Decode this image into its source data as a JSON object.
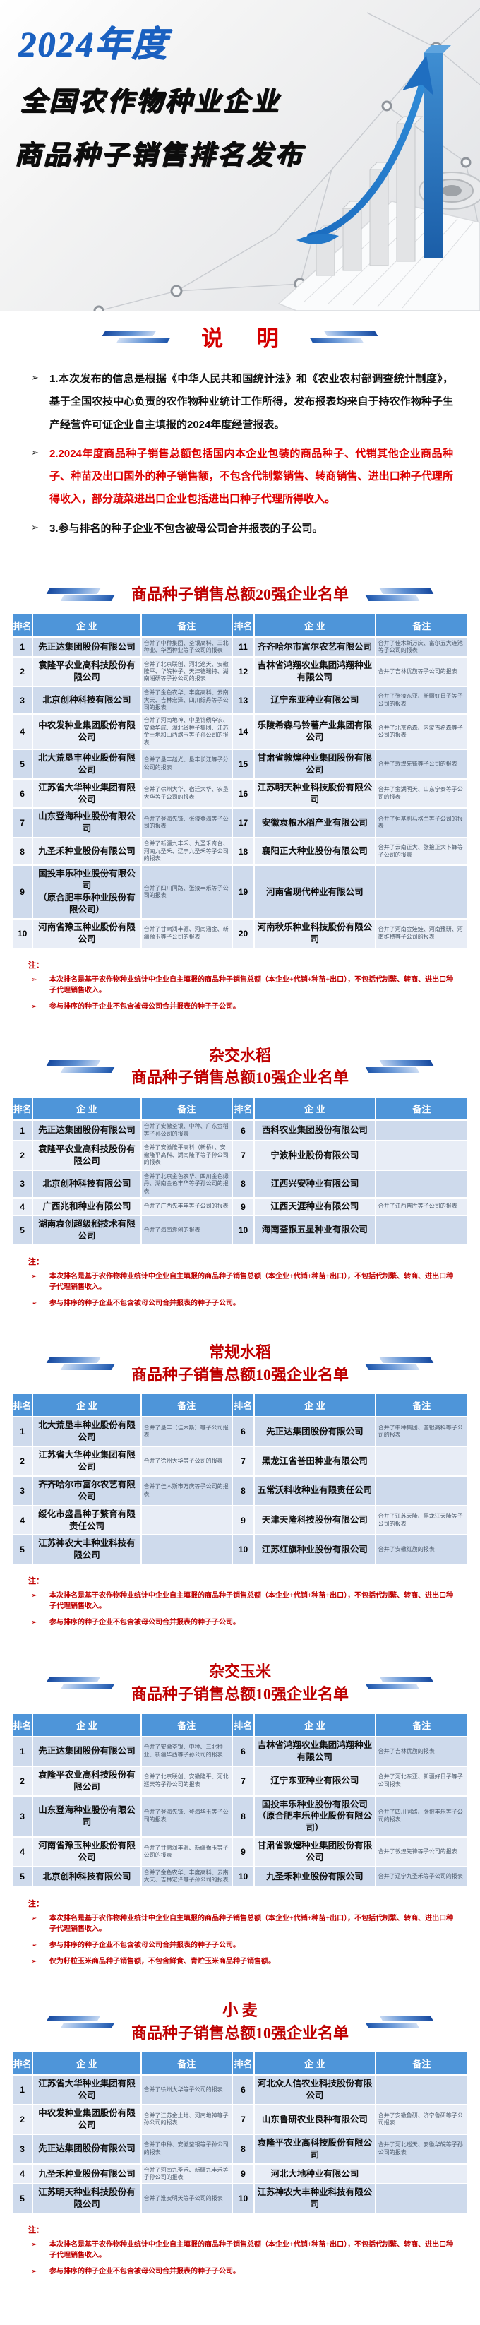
{
  "banner": {
    "title_line1": "2024年度",
    "title_line2": "全国农作物种业企业",
    "title_line3": "商品种子销售排名发布"
  },
  "notice": {
    "title": "说  明",
    "marker": "➢",
    "items": [
      {
        "text": "1.本次发布的信息是根据《中华人民共和国统计法》和《农业农村部调查统计制度》，基于全国农技中心负责的农作物种业统计工作所得，发布报表均来自于持农作物种子生产经营许可证企业自主填报的2024年度经营报表。",
        "emphasis": false
      },
      {
        "text": "2.2024年度商品种子销售总额包括国内本企业包装的商品种子、代销其他企业商品种子、种苗及出口国外的种子销售额，不包含代制繁销售、转商销售、进出口种子代理所得收入，部分蔬菜进出口企业包括进出口种子代理所得收入。",
        "emphasis": true
      },
      {
        "text": "3.参与排名的种子企业不包含被母公司合并报表的子公司。",
        "emphasis": false
      }
    ]
  },
  "tables": [
    {
      "title_line1": "",
      "title_line2": "商品种子销售总额20强企业名单",
      "headers": [
        "排名",
        "企  业",
        "备注",
        "排名",
        "企  业",
        "备注"
      ],
      "rows": [
        [
          "1",
          "先正达集团股份有限公司",
          "合并了中种集团、荃银高科、三北种业、华西种业等子公司的报表",
          "11",
          "齐齐哈尔市富尔农艺有限公司",
          "合并了佳木斯万庆、富尔五大连池等子公司的报表"
        ],
        [
          "2",
          "袁隆平农业高科技股份有限公司",
          "合并了北京联创、河北巡天、安徽隆平、华皖种子、天津德瑞特、湖南湘研等子孙公司的报表",
          "12",
          "吉林省鸿翔农业集团鸿翔种业有限公司",
          "合并了吉林优旗等子公司的报表"
        ],
        [
          "3",
          "北京创种科技有限公司",
          "合并了金色农华、丰度高科、云南大天、吉林宏泽、四川绿丹等子公司的报表",
          "13",
          "辽宁东亚种业有限公司",
          "合并了张掖东亚、新疆好日子等子公司的报表"
        ],
        [
          "4",
          "中农发种业集团股份有限公司",
          "合并了河南地神、中垦锦绣华农、安徽华成、湖北省种子集团、江苏金土地和山西潞玉等子孙公司的报表",
          "14",
          "乐陵希森马铃薯产业集团有限公司",
          "合并了北京希森、内蒙古希森等子公司的报表"
        ],
        [
          "5",
          "北大荒垦丰种业股份有限公司",
          "合并了垦丰赵光、垦丰长江等子分公司的报表",
          "15",
          "甘肃省敦煌种业集团股份有限公司",
          "合并了敦煌先锋等子公司的报表"
        ],
        [
          "6",
          "江苏省大华种业集团有限公司",
          "合并了徐州大华、宿迁大华、农垦大华等子公司的报表",
          "16",
          "江苏明天种业科技股份有限公司",
          "合并了金湖明天、山东宁泰等子公司的报表"
        ],
        [
          "7",
          "山东登海种业股份有限公司",
          "合并了登海先锋、张掖登海等子公司的报表",
          "17",
          "安徽袁粮水稻产业有限公司",
          "合并了恒基利马格兰等子公司的报表"
        ],
        [
          "8",
          "九圣禾种业股份有限公司",
          "合并了新疆九丰禾、九圣禾奇台、河南九圣禾、辽宁九圣禾等子公司的报表",
          "18",
          "襄阳正大种业股份有限公司",
          "合并了云南正大、张掖正大卜蜂等子公司的报表"
        ],
        [
          "9",
          "国投丰乐种业股份有限公司\n（原合肥丰乐种业股份有限公司）",
          "合并了四川同路、张掖丰乐等子公司的报表",
          "19",
          "河南省现代种业有限公司",
          ""
        ],
        [
          "10",
          "河南省豫玉种业股份有限公司",
          "合并了甘肃润丰源、河南涵金、新疆豫玉等子公司的报表",
          "20",
          "河南秋乐种业科技股份有限公司",
          "合并了河南金娃娃、河南豫研、河南维特等子公司的报表"
        ]
      ],
      "notes_label": "注：",
      "notes": [
        "本次排名是基于农作物种业统计中企业自主填报的商品种子销售总额（本企业+代销+种苗+出口），不包括代制繁、转商、进出口种子代理销售收入。",
        "参与排序的种子企业不包含被母公司合并报表的种子子公司。"
      ]
    },
    {
      "title_line1": "杂交水稻",
      "title_line2": "商品种子销售总额10强企业名单",
      "headers": [
        "排名",
        "企  业",
        "备注",
        "排名",
        "企  业",
        "备注"
      ],
      "rows": [
        [
          "1",
          "先正达集团股份有限公司",
          "合并了安徽荃银、中种、广东金稻等子孙公司的报表",
          "6",
          "西科农业集团股份有限公司",
          ""
        ],
        [
          "2",
          "袁隆平农业高科技股份有限公司",
          "合并了安徽隆平高科（新桥）、安徽隆平高科、湖南隆平等子孙公司的报表",
          "7",
          "宁波种业股份有限公司",
          ""
        ],
        [
          "3",
          "北京创种科技有限公司",
          "合并了北京金色农华、四川金色绿丹、湖南金色丰华等子孙公司的报表",
          "8",
          "江西兴安种业有限公司",
          ""
        ],
        [
          "4",
          "广西兆和种业有限公司",
          "合并了广西先丰年等子公司的报表",
          "9",
          "江西天涯种业有限公司",
          "合并了江西普胜等子公司的报表"
        ],
        [
          "5",
          "湖南袁创超级稻技术有限公司",
          "合并了海南袁创的报表",
          "10",
          "海南荃银五星种业有限公司",
          ""
        ]
      ],
      "notes_label": "注：",
      "notes": [
        "本次排名是基于农作物种业统计中企业自主填报的商品种子销售总额（本企业+代销+种苗+出口），不包括代制繁、转商、进出口种子代理销售收入。",
        "参与排序的种子企业不包含被母公司合并报表的种子子公司。"
      ]
    },
    {
      "title_line1": "常规水稻",
      "title_line2": "商品种子销售总额10强企业名单",
      "headers": [
        "排名",
        "企  业",
        "备注",
        "排名",
        "企  业",
        "备注"
      ],
      "rows": [
        [
          "1",
          "北大荒垦丰种业股份有限公司",
          "合并了垦丰（佳木斯）等子公司报表",
          "6",
          "先正达集团股份有限公司",
          "合并了中种集团、荃银高科等子公司的报表"
        ],
        [
          "2",
          "江苏省大华种业集团有限公司",
          "合并了徐州大华等子公司的报表",
          "7",
          "黑龙江省普田种业有限公司",
          ""
        ],
        [
          "3",
          "齐齐哈尔市富尔农艺有限公司",
          "合并了佳木斯市万庆等子公司的报表",
          "8",
          "五常沃科收种业有限责任公司",
          ""
        ],
        [
          "4",
          "绥化市盛昌种子繁育有限责任公司",
          "",
          "9",
          "天津天隆科技股份有限公司",
          "合并了江苏天隆、黑龙江天隆等子公司的报表"
        ],
        [
          "5",
          "江苏神农大丰种业科技有限公司",
          "",
          "10",
          "江苏红旗种业股份有限公司",
          "合并了安徽红旗的报表"
        ]
      ],
      "notes_label": "注：",
      "notes": [
        "本次排名是基于农作物种业统计中企业自主填报的商品种子销售总额（本企业+代销+种苗+出口），不包括代制繁、转商、进出口种子代理销售收入。",
        "参与排序的种子企业不包含被母公司合并报表的种子子公司。"
      ]
    },
    {
      "title_line1": "杂交玉米",
      "title_line2": "商品种子销售总额10强企业名单",
      "headers": [
        "排名",
        "企  业",
        "备注",
        "排名",
        "企  业",
        "备注"
      ],
      "rows": [
        [
          "1",
          "先正达集团股份有限公司",
          "合并了安徽荃银、中种、三北种业、新疆华西等子孙公司的报表",
          "6",
          "吉林省鸿翔农业集团鸿翔种业有限公司",
          "合并了吉林优旗的报表"
        ],
        [
          "2",
          "袁隆平农业高科技股份有限公司",
          "合并了北京联创、安徽隆平、河北巡天等子孙公司的报表",
          "7",
          "辽宁东亚种业有限公司",
          "合并了河北东亚、新疆好日子等子公司报表"
        ],
        [
          "3",
          "山东登海种业股份有限公司",
          "合并了登海先锋、登海华玉等子公司的报表",
          "8",
          "国投丰乐种业股份有限公司\n（原合肥丰乐种业股份有限公司）",
          "合并了四川同路、张掖丰乐等子公司的报表"
        ],
        [
          "4",
          "河南省豫玉种业股份有限公司",
          "合并了甘肃润丰源、新疆豫玉等子公司的报表",
          "9",
          "甘肃省敦煌种业集团股份有限公司",
          "合并了敦煌先锋等子公司的报表"
        ],
        [
          "5",
          "北京创种科技有限公司",
          "合并了金色农华、丰度高科、云南大天、吉林宏泽等子孙公司的报表",
          "10",
          "九圣禾种业股份有限公司",
          "合并了辽宁九圣禾等子公司的报表"
        ]
      ],
      "notes_label": "注：",
      "notes": [
        "本次排名是基于农作物种业统计中企业自主填报的商品种子销售总额（本企业+代销+种苗+出口），不包括代制繁、转商、进出口种子代理销售收入。",
        "参与排序的种子企业不包含被母公司合并报表的种子子公司。",
        "仅为籽粒玉米商品种子销售额，不包含鲜食、青贮玉米商品种子销售额。"
      ]
    },
    {
      "title_line1": "小  麦",
      "title_line2": "商品种子销售总额10强企业名单",
      "headers": [
        "排名",
        "企  业",
        "备注",
        "排名",
        "企  业",
        "备注"
      ],
      "rows": [
        [
          "1",
          "江苏省大华种业集团有限公司",
          "合并了徐州大华等子公司的报表",
          "6",
          "河北众人信农业科技股份有限公司",
          ""
        ],
        [
          "2",
          "中农发种业集团股份有限公司",
          "合并了江苏金土地、河南地神等子孙公司的报表",
          "7",
          "山东鲁研农业良种有限公司",
          "合并了安徽鲁研、济宁鲁研等子公司报表"
        ],
        [
          "3",
          "先正达集团股份有限公司",
          "合并了中种、安徽荃银等子孙公司的报表",
          "8",
          "袁隆平农业高科技股份有限公司",
          "合并了河北巡天、安徽华皖等子孙公司的报表"
        ],
        [
          "4",
          "九圣禾种业股份有限公司",
          "合并了河南九圣禾、新疆九丰禾等子孙公司的报表",
          "9",
          "河北大地种业有限公司",
          ""
        ],
        [
          "5",
          "江苏明天种业科技股份有限公司",
          "合并了淮安明天等子公司的报表",
          "10",
          "江苏神农大丰种业科技有限公司",
          ""
        ]
      ],
      "notes_label": "注：",
      "notes": [
        "本次排名是基于农作物种业统计中企业自主填报的商品种子销售总额（本企业+代销+种苗+出口），不包括代制繁、转商、进出口种子代理销售收入。",
        "参与排序的种子企业不包含被母公司合并报表的种子子公司。"
      ]
    }
  ]
}
